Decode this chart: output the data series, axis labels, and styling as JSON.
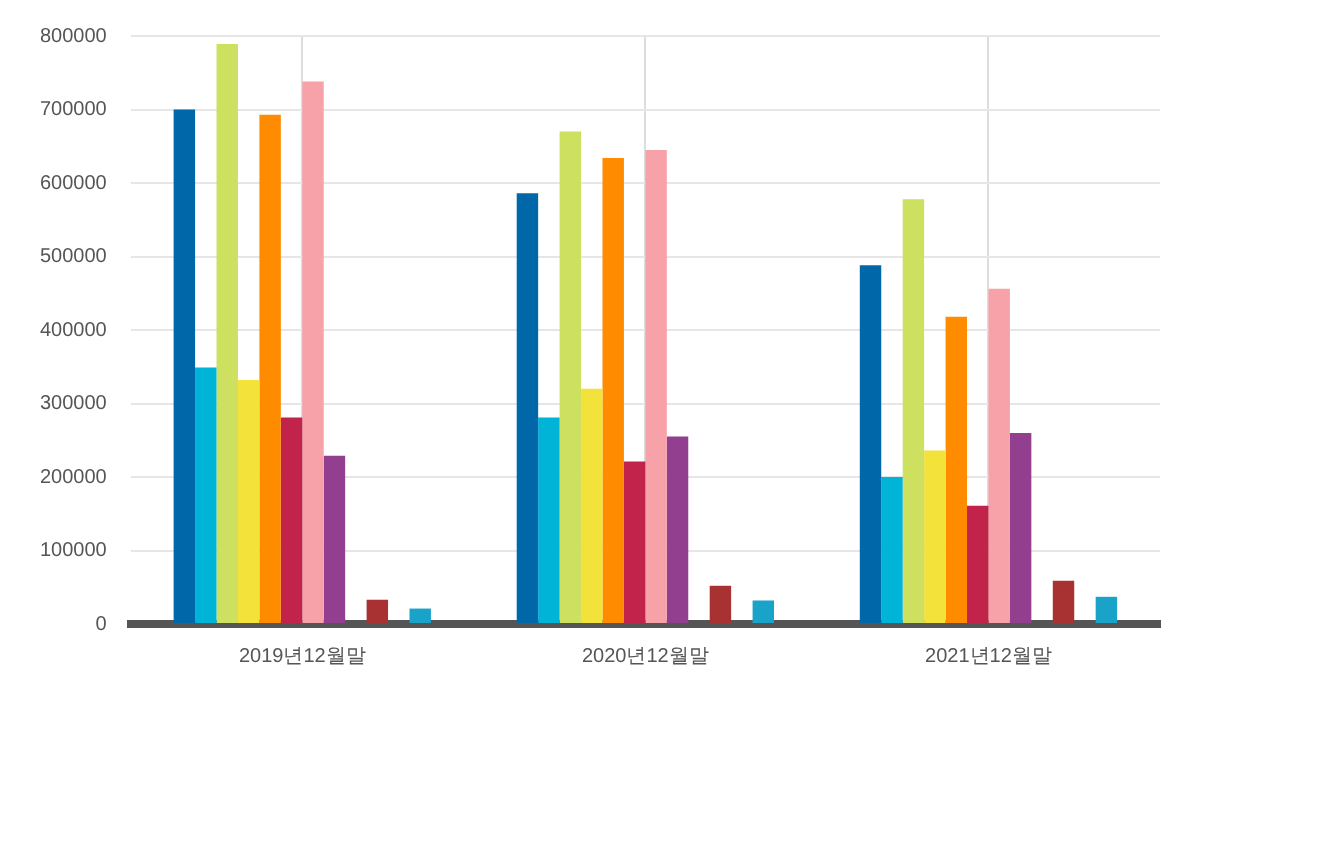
{
  "chart_data": {
    "type": "bar",
    "categories": [
      "2019년12월말",
      "2020년12월말",
      "2021년12월말"
    ],
    "series": [
      {
        "color": "#0067a8",
        "values": [
          700000,
          586000,
          488000
        ]
      },
      {
        "color": "#00b4d8",
        "values": [
          349000,
          281000,
          200000
        ]
      },
      {
        "color": "#cde05f",
        "values": [
          789000,
          670000,
          578000
        ]
      },
      {
        "color": "#f2e23a",
        "values": [
          332000,
          320000,
          236000
        ]
      },
      {
        "color": "#ff8c00",
        "values": [
          693000,
          634000,
          418000
        ]
      },
      {
        "color": "#c2234a",
        "values": [
          281000,
          221000,
          161000
        ]
      },
      {
        "color": "#f7a1a8",
        "values": [
          738000,
          645000,
          456000
        ]
      },
      {
        "color": "#923f8f",
        "values": [
          229000,
          255000,
          260000
        ]
      },
      {
        "values": [
          null,
          null,
          null
        ]
      },
      {
        "color": "#a83232",
        "values": [
          33000,
          52000,
          59000
        ]
      },
      {
        "values": [
          null,
          null,
          null
        ]
      },
      {
        "color": "#1aa3c8",
        "values": [
          21000,
          32000,
          37000
        ]
      }
    ],
    "ylim": [
      0,
      800000
    ],
    "yticks": [
      0,
      100000,
      200000,
      300000,
      400000,
      500000,
      600000,
      700000,
      800000
    ],
    "grid": true,
    "legend": false
  }
}
